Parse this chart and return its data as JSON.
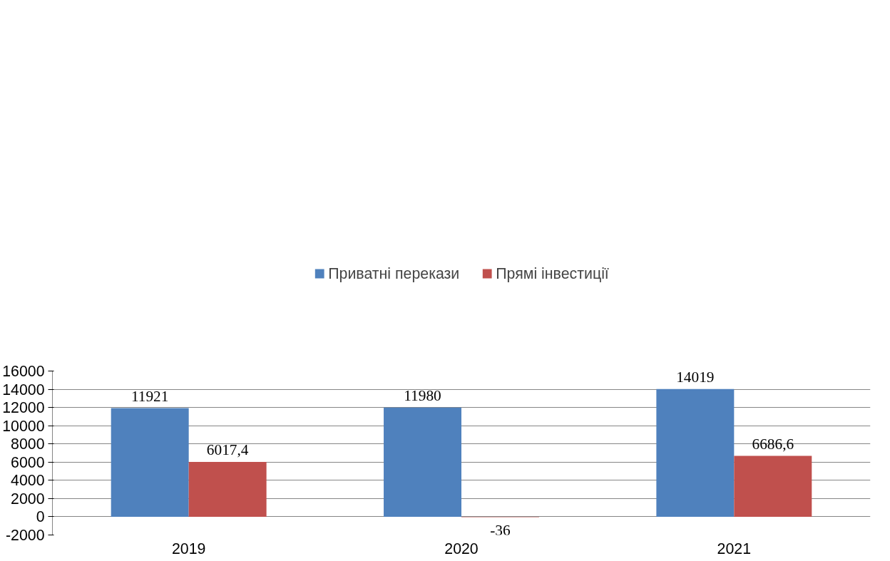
{
  "chart_data": {
    "type": "bar",
    "categories": [
      "2019",
      "2020",
      "2021"
    ],
    "series": [
      {
        "name": "Приватні перекази",
        "color": "#4f81bd",
        "values": [
          11921,
          11980,
          14019
        ],
        "value_labels": [
          "11921",
          "11980",
          "14019"
        ]
      },
      {
        "name": "Прямі інвестиції",
        "color": "#c0504d",
        "values": [
          6017.4,
          -36,
          6686.6
        ],
        "value_labels": [
          "6017,4",
          "-36",
          "6686,6"
        ]
      }
    ],
    "ylim": [
      -2000,
      16000
    ],
    "yticks": [
      -2000,
      0,
      2000,
      4000,
      6000,
      8000,
      10000,
      12000,
      14000,
      16000
    ],
    "grid": "y",
    "legend": "top"
  }
}
